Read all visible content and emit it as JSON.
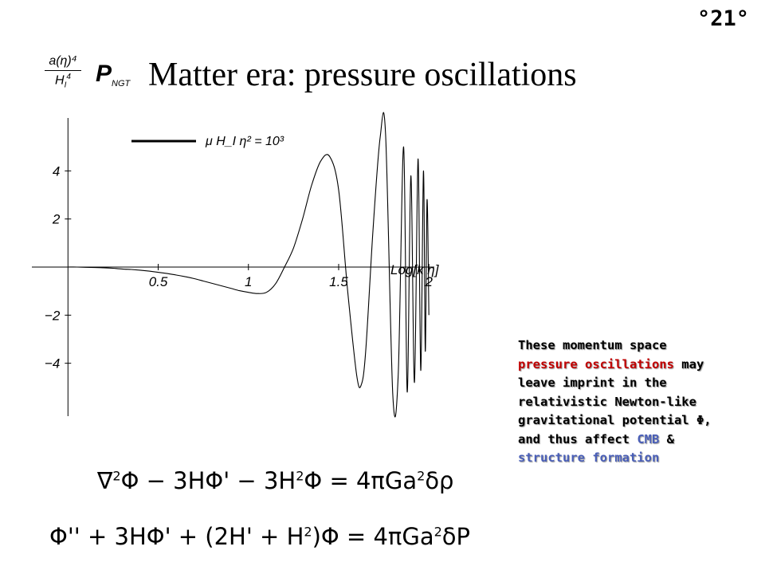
{
  "slide_number": "°21°",
  "title_prefactor": {
    "numerator": "a(η)⁴",
    "denominator": "H",
    "denominator_sub": "I",
    "denominator_sup": "4"
  },
  "p_symbol": {
    "main": "P",
    "sub": "NGT"
  },
  "title": "Matter era: pressure oscillations",
  "chart_data": {
    "type": "line",
    "xlabel": "Log[k η]",
    "legend": "μ H_I η² = 10³",
    "legend_placement": "top-left",
    "x_range": [
      -0.2,
      2.03
    ],
    "y_range": [
      -6.2,
      6.2
    ],
    "x_ticks": [
      0.5,
      1,
      1.5,
      2
    ],
    "x_tick_labels": [
      "0.5",
      "1",
      "1.5",
      "2"
    ],
    "y_ticks": [
      -4,
      -2,
      2,
      4
    ],
    "y_tick_labels": [
      "−4",
      "−2",
      "2",
      "4"
    ],
    "grid": false,
    "series": [
      {
        "name": "μ H_I η² = 10³",
        "x": [
          0.0,
          0.05,
          0.1,
          0.15,
          0.2,
          0.25,
          0.3,
          0.35,
          0.4,
          0.45,
          0.5,
          0.55,
          0.6,
          0.65,
          0.7,
          0.75,
          0.8,
          0.85,
          0.9,
          0.95,
          1.0,
          1.05,
          1.1,
          1.15,
          1.2,
          1.25,
          1.3,
          1.35,
          1.4,
          1.45,
          1.5,
          1.55,
          1.6,
          1.625,
          1.65,
          1.69,
          1.73,
          1.76,
          1.8,
          1.83,
          1.86,
          1.88,
          1.9,
          1.92,
          1.94,
          1.955,
          1.97,
          1.98,
          1.99,
          2.0
        ],
        "y": [
          0.0,
          0.0,
          -0.01,
          -0.02,
          -0.03,
          -0.05,
          -0.08,
          -0.1,
          -0.13,
          -0.17,
          -0.22,
          -0.27,
          -0.33,
          -0.4,
          -0.48,
          -0.58,
          -0.68,
          -0.78,
          -0.88,
          -0.98,
          -1.05,
          -1.1,
          -1.05,
          -0.7,
          0.0,
          0.8,
          2.0,
          3.4,
          4.4,
          4.6,
          3.2,
          -1.0,
          -4.5,
          -4.9,
          -3.5,
          1.5,
          5.4,
          5.5,
          -5.3,
          -4.5,
          5.0,
          -5.2,
          3.8,
          -4.8,
          4.5,
          -4.3,
          4.0,
          -3.5,
          2.8,
          -2.0
        ]
      }
    ]
  },
  "note": {
    "line1": "These momentum space",
    "line2_red": "pressure oscillations",
    "line2_rest": " may",
    "line3": "leave imprint in the",
    "line4": "relativistic Newton-like",
    "line5": "gravitational potential Φ,",
    "line6_pre": "and thus affect ",
    "line6_blue": "CMB",
    "line6_post": " &",
    "line7_blue": "structure formation"
  },
  "equation1": {
    "a": "∇",
    "b": "2",
    "c": "Φ − 3HΦ' − 3H",
    "d": "2",
    "e": "Φ = 4πGa",
    "f": "2",
    "g": "δρ"
  },
  "equation2": {
    "a": "Φ'' + 3HΦ' + (2H' + H",
    "b": "2",
    "c": ")Φ = 4πGa",
    "d": "2",
    "e": "δP"
  }
}
